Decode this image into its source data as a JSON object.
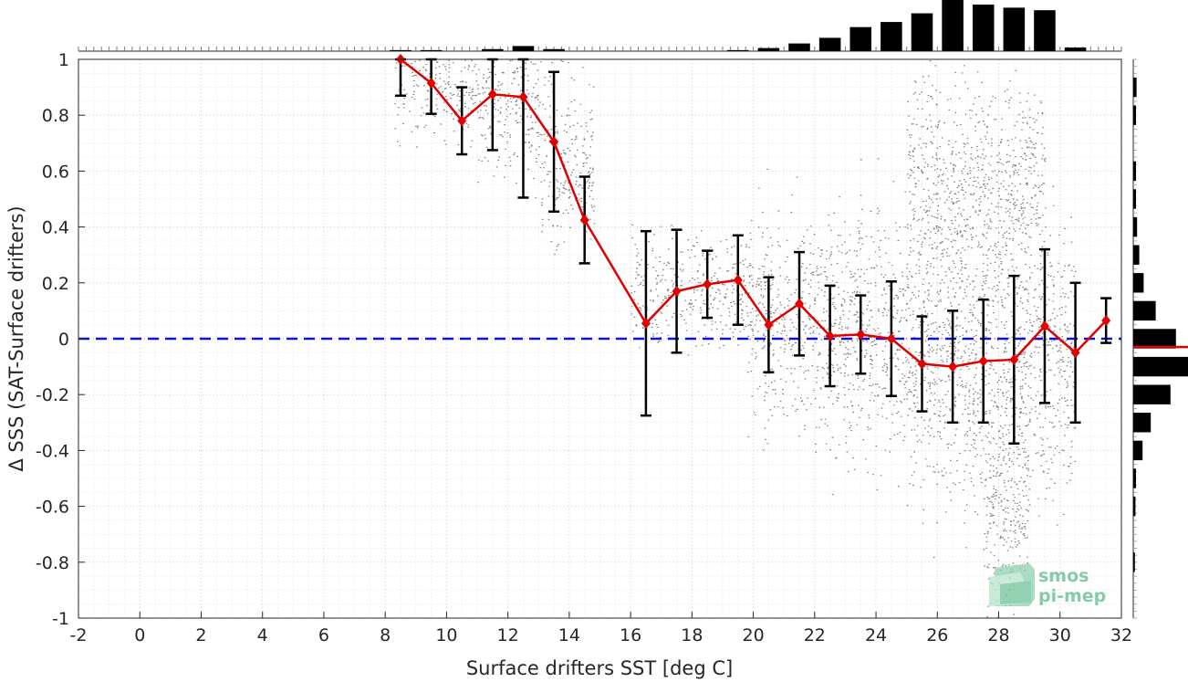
{
  "chart_data": {
    "type": "scatter",
    "xlabel": "Surface drifters SST [deg C]",
    "ylabel": "Δ SSS (SAT-Surface drifters)",
    "xlim": [
      -2,
      32
    ],
    "ylim": [
      -1,
      1
    ],
    "xticks": [
      "-2",
      "0",
      "2",
      "4",
      "6",
      "8",
      "10",
      "12",
      "14",
      "16",
      "18",
      "20",
      "22",
      "24",
      "26",
      "28",
      "30",
      "32"
    ],
    "yticks": [
      "-1",
      "-0.8",
      "-0.6",
      "-0.4",
      "-0.2",
      "0",
      "0.2",
      "0.4",
      "0.6",
      "0.8",
      "1"
    ],
    "grid": true,
    "reference_line": {
      "y": 0,
      "style": "dashed",
      "color": "#0a14d9"
    },
    "binned_mean": {
      "color": "#e00000",
      "x": [
        8.5,
        9.5,
        10.5,
        11.5,
        12.5,
        13.5,
        14.5,
        16.5,
        17.5,
        18.5,
        19.5,
        20.5,
        21.5,
        22.5,
        23.5,
        24.5,
        25.5,
        26.5,
        27.5,
        28.5,
        29.5,
        30.5,
        31.5
      ],
      "y": [
        1.0,
        0.915,
        0.78,
        0.875,
        0.865,
        0.705,
        0.425,
        0.055,
        0.17,
        0.195,
        0.21,
        0.05,
        0.125,
        0.01,
        0.015,
        0.0,
        -0.09,
        -0.1,
        -0.08,
        -0.075,
        0.045,
        -0.05,
        0.065
      ],
      "std": [
        0.13,
        0.11,
        0.12,
        0.2,
        0.36,
        0.25,
        0.155,
        0.33,
        0.22,
        0.12,
        0.16,
        0.17,
        0.185,
        0.18,
        0.14,
        0.205,
        0.17,
        0.2,
        0.22,
        0.3,
        0.275,
        0.25,
        0.08
      ]
    },
    "scatter_color": "#808080",
    "scatter_clusters": [
      {
        "x_range": [
          8.3,
          11.0
        ],
        "y_center": 0.92,
        "y_spread": 0.1
      },
      {
        "x_range": [
          11.0,
          13.0
        ],
        "y_center": 0.84,
        "y_spread": 0.13
      },
      {
        "x_range": [
          13.0,
          14.8
        ],
        "y_center": 0.62,
        "y_spread": 0.15
      },
      {
        "x_range": [
          16.0,
          19.8
        ],
        "y_center": 0.18,
        "y_spread": 0.1
      },
      {
        "x_range": [
          19.8,
          22.0
        ],
        "y_center": 0.08,
        "y_spread": 0.18
      },
      {
        "x_range": [
          22.0,
          25.0
        ],
        "y_center": 0.02,
        "y_spread": 0.22
      },
      {
        "x_range": [
          25.0,
          30.5
        ],
        "y_center": -0.06,
        "y_spread": 0.26
      },
      {
        "x_range": [
          27.5,
          29.0
        ],
        "y_center": -0.55,
        "y_spread": 0.2
      },
      {
        "x_range": [
          25.0,
          29.5
        ],
        "y_center": 0.55,
        "y_spread": 0.2
      }
    ],
    "top_histogram": {
      "color": "#000000",
      "x": [
        8.5,
        9.5,
        11.5,
        12.5,
        13.5,
        19.5,
        20.5,
        21.5,
        22.5,
        23.5,
        24.5,
        25.5,
        26.5,
        27.5,
        28.5,
        29.5,
        30.5
      ],
      "counts": [
        0.02,
        0.02,
        0.04,
        0.1,
        0.04,
        0.02,
        0.06,
        0.15,
        0.26,
        0.47,
        0.57,
        0.74,
        1.0,
        0.91,
        0.85,
        0.8,
        0.07
      ]
    },
    "right_histogram": {
      "color": "#000000",
      "mean_line_color": "#e00000",
      "mean_line_y": -0.03,
      "y": [
        0.9,
        0.8,
        0.6,
        0.5,
        0.4,
        0.3,
        0.2,
        0.1,
        0.0,
        -0.1,
        -0.2,
        -0.3,
        -0.4,
        -0.5,
        -0.6,
        -0.8
      ],
      "counts": [
        0.06,
        0.05,
        0.05,
        0.05,
        0.07,
        0.11,
        0.19,
        0.41,
        0.78,
        1.0,
        0.68,
        0.32,
        0.17,
        0.05,
        0.04,
        0.03
      ]
    }
  },
  "logo": {
    "line1": "smos",
    "line2": "pi-mep"
  }
}
